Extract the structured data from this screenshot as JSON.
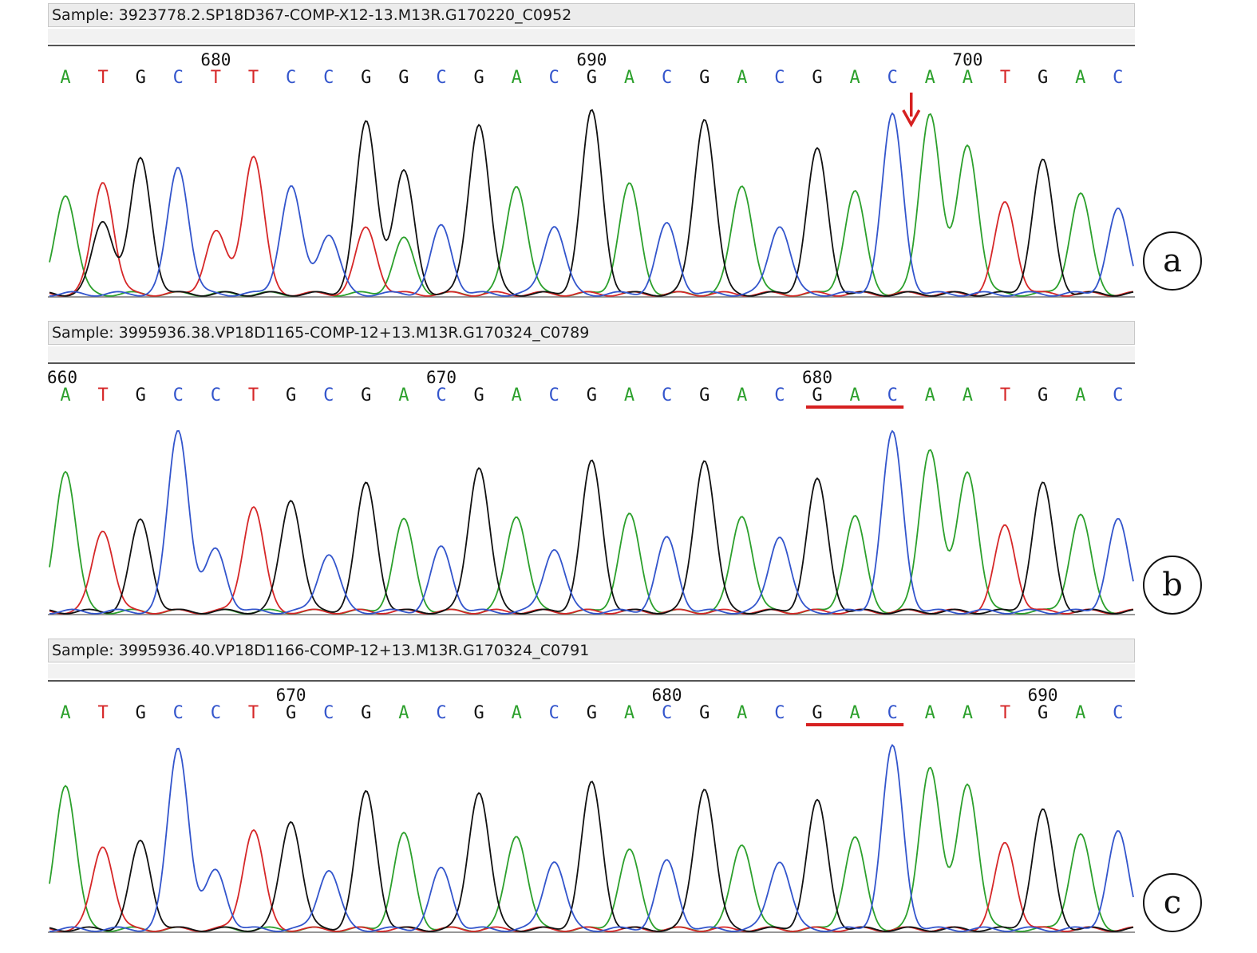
{
  "colors": {
    "A": "#2ca02c",
    "T": "#d62728",
    "G": "#111111",
    "C": "#3355cc",
    "highlight": "#d62020"
  },
  "panels": [
    {
      "id": "a",
      "sample": "Sample: 3923778.2.SP18D367-COMP-X12-13.M13R.G170220_C0952",
      "ruler_labels": [
        "680",
        "690",
        "700"
      ],
      "sequence": "ATGCTTCCGGCGACGACGACGACAATGAC",
      "label": "a",
      "annotation": "arrow",
      "peaks": [
        [
          0.55,
          0
        ],
        [
          0.62,
          0
        ],
        [
          0.74,
          0
        ],
        [
          0.53,
          0
        ],
        [
          0.34,
          0
        ],
        [
          0.38,
          0
        ],
        [
          0.59,
          0
        ],
        [
          0.33,
          0
        ],
        [
          0.46,
          0
        ],
        [
          0.33,
          0
        ],
        [
          0.37,
          0
        ],
        [
          0.94,
          0
        ],
        [
          0.6,
          0
        ],
        [
          0.38,
          0
        ],
        [
          1.0,
          0
        ],
        [
          0.6,
          0
        ],
        [
          0.38,
          0
        ],
        [
          0.97,
          0
        ],
        [
          0.6,
          0
        ],
        [
          0.38,
          0
        ],
        [
          0.79,
          0
        ],
        [
          0.56,
          0
        ],
        [
          0.98,
          0
        ],
        [
          1.0,
          0
        ],
        [
          0.82,
          0
        ],
        [
          0.5,
          0
        ],
        [
          0.73,
          0
        ],
        [
          0.55,
          0
        ],
        [
          0.46,
          0
        ]
      ],
      "secondary": [
        [
          1,
          "G",
          0.4
        ],
        [
          3,
          "C",
          0.17
        ],
        [
          5,
          "T",
          0.38
        ],
        [
          8,
          "T",
          0.36
        ],
        [
          8,
          "G",
          0.48
        ],
        [
          9,
          "A",
          0.3
        ],
        [
          9,
          "G",
          0.34
        ]
      ]
    },
    {
      "id": "b",
      "sample": "Sample: 3995936.38.VP18D1165-COMP-12+13.M13R.G170324_C0789",
      "ruler_labels": [
        "660",
        "670",
        "680"
      ],
      "sequence": "ATGCCTGCGACGACGACGACGACAATGAC",
      "label": "b",
      "annotation": "underline",
      "underline_label": "GAC",
      "peaks": [
        [
          0.78,
          0
        ],
        [
          0.45,
          0
        ],
        [
          0.5,
          0
        ],
        [
          1.0,
          0
        ],
        [
          0.34,
          0
        ],
        [
          0.58,
          0
        ],
        [
          0.62,
          0
        ],
        [
          0.32,
          0
        ],
        [
          0.7,
          0
        ],
        [
          0.5,
          0
        ],
        [
          0.35,
          0
        ],
        [
          0.8,
          0
        ],
        [
          0.53,
          0
        ],
        [
          0.35,
          0
        ],
        [
          0.82,
          0
        ],
        [
          0.53,
          0
        ],
        [
          0.4,
          0
        ],
        [
          0.84,
          0
        ],
        [
          0.53,
          0
        ],
        [
          0.42,
          0
        ],
        [
          0.72,
          0
        ],
        [
          0.52,
          0
        ],
        [
          0.98,
          0
        ],
        [
          0.9,
          0
        ],
        [
          0.77,
          0
        ],
        [
          0.47,
          0
        ],
        [
          0.7,
          0
        ],
        [
          0.53,
          0
        ],
        [
          0.5,
          0
        ]
      ],
      "secondary": []
    },
    {
      "id": "c",
      "sample": "Sample: 3995936.40.VP18D1166-COMP-12+13.M13R.G170324_C0791",
      "ruler_labels": [
        "670",
        "680",
        "690"
      ],
      "sequence": "ATGCCTGCGACGACGACGACGACAATGAC",
      "label": "c",
      "annotation": "underline",
      "underline_label": "GAC",
      "peaks": [
        [
          0.8,
          0
        ],
        [
          0.46,
          0
        ],
        [
          0.48,
          0
        ],
        [
          1.0,
          0
        ],
        [
          0.32,
          0
        ],
        [
          0.55,
          0
        ],
        [
          0.6,
          0
        ],
        [
          0.33,
          0
        ],
        [
          0.75,
          0
        ],
        [
          0.52,
          0
        ],
        [
          0.33,
          0
        ],
        [
          0.76,
          0
        ],
        [
          0.52,
          0
        ],
        [
          0.38,
          0
        ],
        [
          0.8,
          0
        ],
        [
          0.43,
          0
        ],
        [
          0.37,
          0
        ],
        [
          0.78,
          0
        ],
        [
          0.47,
          0
        ],
        [
          0.38,
          0
        ],
        [
          0.7,
          0
        ],
        [
          0.5,
          0
        ],
        [
          1.0,
          0
        ],
        [
          0.9,
          0
        ],
        [
          0.8,
          0
        ],
        [
          0.47,
          0
        ],
        [
          0.65,
          0
        ],
        [
          0.52,
          0
        ],
        [
          0.53,
          0
        ]
      ],
      "secondary": []
    }
  ]
}
